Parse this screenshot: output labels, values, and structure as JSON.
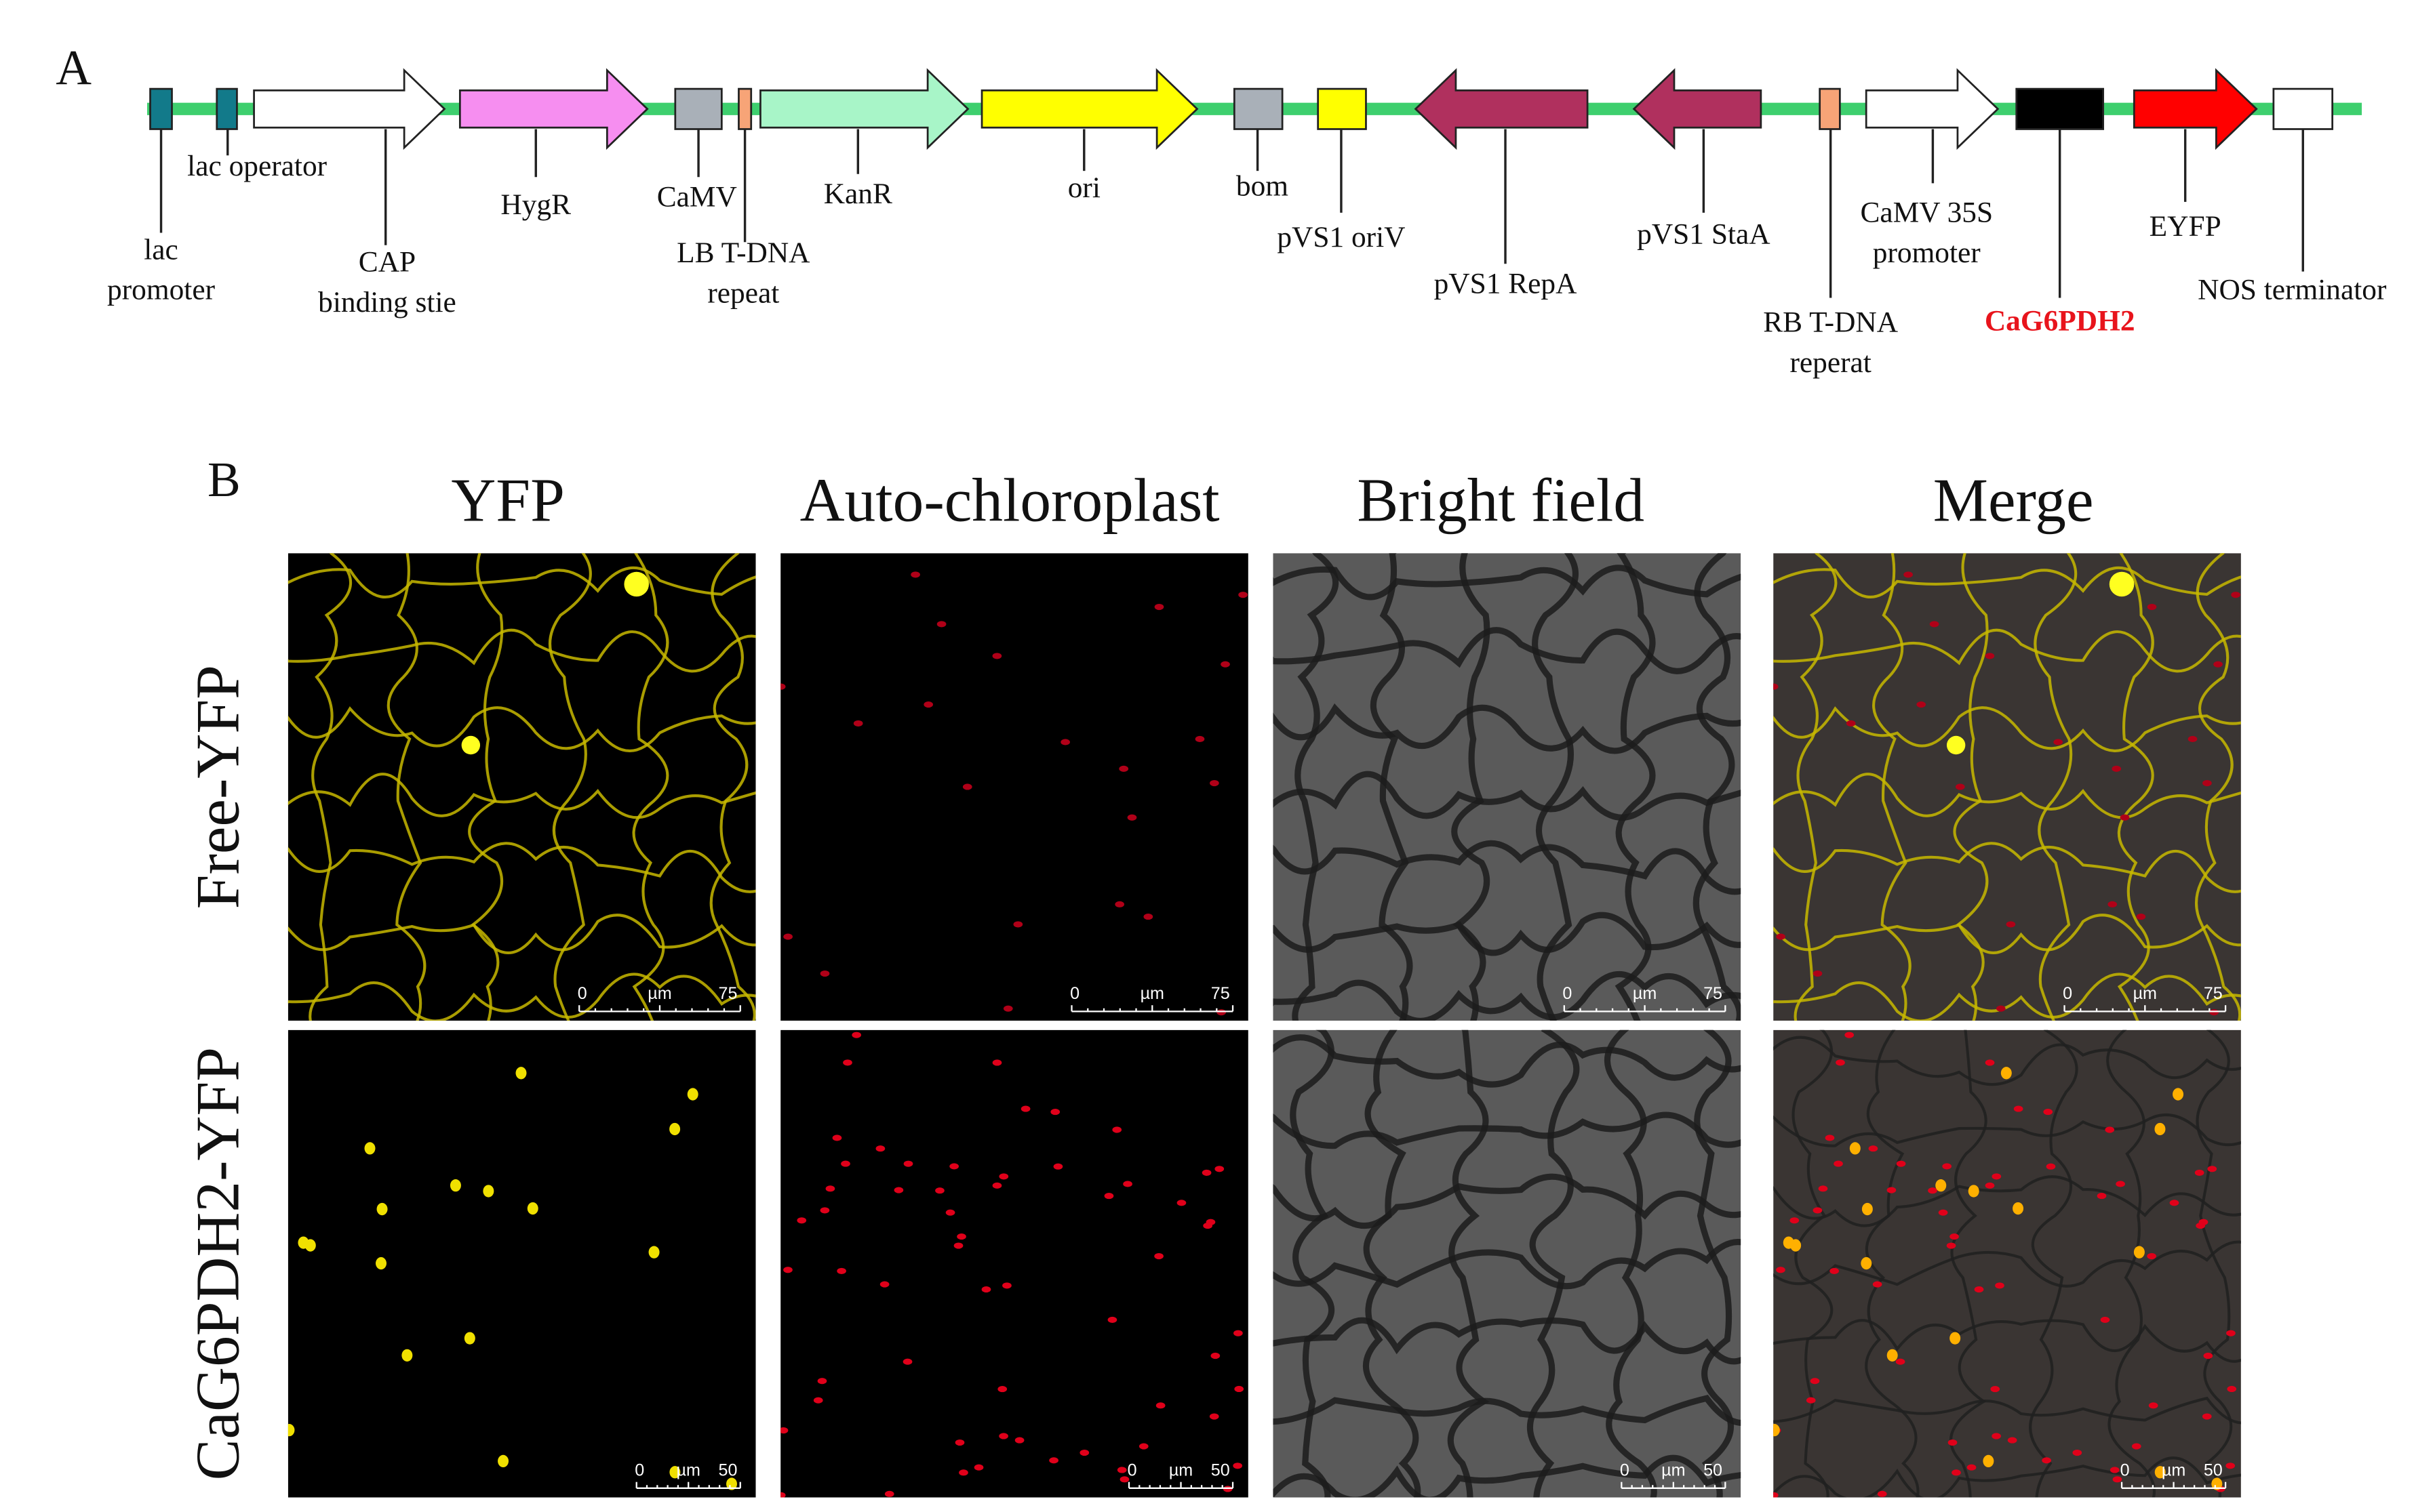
{
  "panel_a": {
    "label": "A",
    "features": [
      {
        "lines": [
          "lac",
          "promoter"
        ]
      },
      {
        "lines": [
          "lac operator"
        ]
      },
      {
        "lines": [
          "CAP",
          "binding stie"
        ]
      },
      {
        "lines": [
          "HygR"
        ]
      },
      {
        "lines": [
          "CaMV"
        ]
      },
      {
        "lines": [
          "LB T-DNA",
          "repeat"
        ]
      },
      {
        "lines": [
          "KanR"
        ]
      },
      {
        "lines": [
          "ori"
        ]
      },
      {
        "lines": [
          "bom"
        ]
      },
      {
        "lines": [
          "pVS1 oriV"
        ]
      },
      {
        "lines": [
          "pVS1 RepA"
        ]
      },
      {
        "lines": [
          "pVS1 StaA"
        ]
      },
      {
        "lines": [
          "RB T-DNA",
          "reperat"
        ]
      },
      {
        "lines": [
          "CaMV 35S",
          "promoter"
        ]
      },
      {
        "lines": [
          "CaG6PDH2"
        ]
      },
      {
        "lines": [
          "EYFP"
        ]
      },
      {
        "lines": [
          "NOS terminator"
        ]
      }
    ]
  },
  "panel_b": {
    "label": "B",
    "columns": [
      "YFP",
      "Auto-chloroplast",
      "Bright field",
      "Merge"
    ],
    "rows": [
      {
        "label": "Free-YFP",
        "scale_bar": [
          "0",
          "µm",
          "75"
        ]
      },
      {
        "label": "CaG6PDH2-YFP",
        "scale_bar": [
          "0",
          "µm",
          "50"
        ]
      }
    ]
  }
}
